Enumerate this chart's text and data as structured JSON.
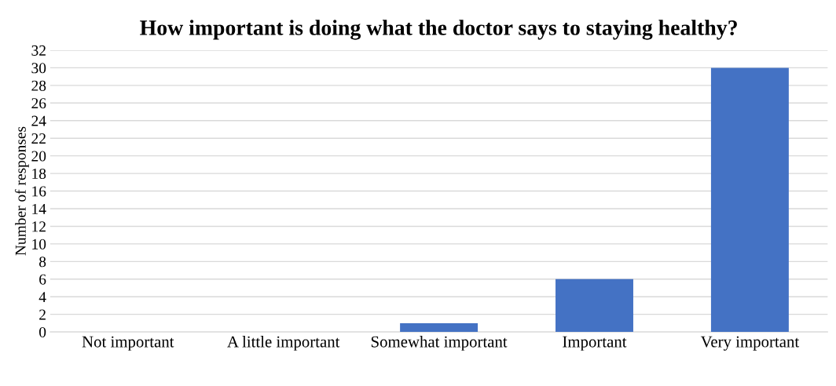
{
  "chart_data": {
    "type": "bar",
    "title": "How important is doing what the doctor says to staying healthy?",
    "ylabel": "Number of responses",
    "categories": [
      "Not important",
      "A little important",
      "Somewhat important",
      "Important",
      "Very important"
    ],
    "values": [
      0,
      0,
      1,
      6,
      30
    ],
    "color": "#4472c4",
    "ylim": [
      0,
      32
    ],
    "yticks": [
      0,
      2,
      4,
      6,
      8,
      10,
      12,
      14,
      16,
      18,
      20,
      22,
      24,
      26,
      28,
      30,
      32
    ],
    "grid": "y"
  }
}
